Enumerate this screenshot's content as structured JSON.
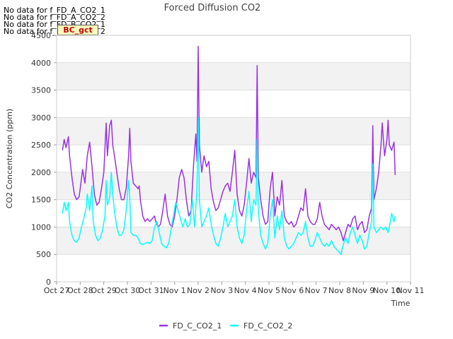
{
  "no_data_messages": [
    "No data for f_FD_A_CO2_1",
    "No data for f_FD_A_CO2_2",
    "No data for f_FD_B_CO2_1",
    "No data for f_FD_B_CO2_2"
  ],
  "badge_text": "BC_gct",
  "chart_data": {
    "type": "line",
    "title": "Forced Diffusion CO2",
    "xlabel": "Time",
    "ylabel": "CO2 Concentration (ppm)",
    "ylim": [
      0,
      4500
    ],
    "xlim": [
      0,
      15
    ],
    "yticks": [
      0,
      500,
      1000,
      1500,
      2000,
      2500,
      3000,
      3500,
      4000,
      4500
    ],
    "xtick_labels": [
      "Oct 27",
      "Oct 28",
      "Oct 29",
      "Oct 30",
      "Oct 31",
      "Nov 1",
      "Nov 2",
      "Nov 3",
      "Nov 4",
      "Nov 5",
      "Nov 6",
      "Nov 7",
      "Nov 8",
      "Nov 9",
      "Nov 10",
      "Nov 11"
    ],
    "x_unit": "days since Oct 27",
    "grid": true,
    "legend_position": "bottom",
    "series": [
      {
        "name": "FD_C_CO2_1",
        "color": "#9b30e6",
        "points": [
          [
            0.25,
            2400
          ],
          [
            0.32,
            2600
          ],
          [
            0.4,
            2450
          ],
          [
            0.5,
            2650
          ],
          [
            0.55,
            2300
          ],
          [
            0.65,
            1900
          ],
          [
            0.75,
            1600
          ],
          [
            0.85,
            1500
          ],
          [
            0.95,
            1550
          ],
          [
            1.0,
            1700
          ],
          [
            1.1,
            2050
          ],
          [
            1.2,
            1800
          ],
          [
            1.3,
            2300
          ],
          [
            1.4,
            2550
          ],
          [
            1.5,
            2100
          ],
          [
            1.6,
            1600
          ],
          [
            1.7,
            1400
          ],
          [
            1.8,
            1450
          ],
          [
            1.9,
            1700
          ],
          [
            2.0,
            2000
          ],
          [
            2.1,
            2900
          ],
          [
            2.15,
            2300
          ],
          [
            2.25,
            2850
          ],
          [
            2.32,
            2950
          ],
          [
            2.38,
            2500
          ],
          [
            2.45,
            2300
          ],
          [
            2.55,
            2000
          ],
          [
            2.65,
            1700
          ],
          [
            2.75,
            1500
          ],
          [
            2.85,
            1500
          ],
          [
            2.95,
            1700
          ],
          [
            3.05,
            2300
          ],
          [
            3.1,
            2800
          ],
          [
            3.15,
            2200
          ],
          [
            3.25,
            1800
          ],
          [
            3.35,
            1750
          ],
          [
            3.45,
            1700
          ],
          [
            3.5,
            1750
          ],
          [
            3.55,
            1500
          ],
          [
            3.65,
            1200
          ],
          [
            3.75,
            1100
          ],
          [
            3.85,
            1150
          ],
          [
            3.95,
            1100
          ],
          [
            4.05,
            1150
          ],
          [
            4.15,
            1200
          ],
          [
            4.2,
            1100
          ],
          [
            4.3,
            1000
          ],
          [
            4.4,
            1050
          ],
          [
            4.5,
            1300
          ],
          [
            4.6,
            1600
          ],
          [
            4.7,
            1200
          ],
          [
            4.8,
            1050
          ],
          [
            4.9,
            1000
          ],
          [
            5.0,
            1200
          ],
          [
            5.1,
            1500
          ],
          [
            5.2,
            1900
          ],
          [
            5.3,
            2050
          ],
          [
            5.4,
            1900
          ],
          [
            5.5,
            1500
          ],
          [
            5.6,
            1200
          ],
          [
            5.7,
            1300
          ],
          [
            5.8,
            2100
          ],
          [
            5.9,
            2700
          ],
          [
            5.95,
            2200
          ],
          [
            6.0,
            4300
          ],
          [
            6.05,
            2500
          ],
          [
            6.15,
            2000
          ],
          [
            6.25,
            2300
          ],
          [
            6.35,
            2100
          ],
          [
            6.45,
            2200
          ],
          [
            6.55,
            1700
          ],
          [
            6.65,
            1450
          ],
          [
            6.75,
            1300
          ],
          [
            6.85,
            1350
          ],
          [
            6.95,
            1500
          ],
          [
            7.05,
            1650
          ],
          [
            7.15,
            1750
          ],
          [
            7.25,
            1800
          ],
          [
            7.35,
            1650
          ],
          [
            7.45,
            2000
          ],
          [
            7.55,
            2400
          ],
          [
            7.65,
            1600
          ],
          [
            7.75,
            1300
          ],
          [
            7.85,
            1200
          ],
          [
            7.95,
            1400
          ],
          [
            8.05,
            1800
          ],
          [
            8.15,
            2250
          ],
          [
            8.25,
            1800
          ],
          [
            8.35,
            2000
          ],
          [
            8.45,
            1900
          ],
          [
            8.5,
            3950
          ],
          [
            8.55,
            1900
          ],
          [
            8.65,
            1500
          ],
          [
            8.75,
            1200
          ],
          [
            8.85,
            1050
          ],
          [
            8.95,
            1100
          ],
          [
            9.05,
            1700
          ],
          [
            9.15,
            2000
          ],
          [
            9.25,
            1200
          ],
          [
            9.35,
            1550
          ],
          [
            9.45,
            1400
          ],
          [
            9.55,
            1850
          ],
          [
            9.65,
            1200
          ],
          [
            9.75,
            1100
          ],
          [
            9.85,
            1050
          ],
          [
            9.95,
            1100
          ],
          [
            10.05,
            1000
          ],
          [
            10.15,
            1050
          ],
          [
            10.25,
            1200
          ],
          [
            10.35,
            1350
          ],
          [
            10.45,
            1300
          ],
          [
            10.55,
            1700
          ],
          [
            10.65,
            1200
          ],
          [
            10.75,
            1100
          ],
          [
            10.85,
            1050
          ],
          [
            10.95,
            1050
          ],
          [
            11.05,
            1150
          ],
          [
            11.15,
            1450
          ],
          [
            11.25,
            1200
          ],
          [
            11.35,
            1050
          ],
          [
            11.45,
            1000
          ],
          [
            11.55,
            950
          ],
          [
            11.65,
            1050
          ],
          [
            11.75,
            1000
          ],
          [
            11.85,
            950
          ],
          [
            11.95,
            1000
          ],
          [
            12.05,
            900
          ],
          [
            12.15,
            750
          ],
          [
            12.25,
            900
          ],
          [
            12.35,
            1050
          ],
          [
            12.45,
            1000
          ],
          [
            12.55,
            1150
          ],
          [
            12.65,
            1200
          ],
          [
            12.75,
            950
          ],
          [
            12.85,
            1050
          ],
          [
            12.95,
            1100
          ],
          [
            13.05,
            900
          ],
          [
            13.15,
            950
          ],
          [
            13.25,
            1200
          ],
          [
            13.35,
            1350
          ],
          [
            13.4,
            2850
          ],
          [
            13.45,
            1500
          ],
          [
            13.55,
            1700
          ],
          [
            13.65,
            2000
          ],
          [
            13.75,
            2500
          ],
          [
            13.8,
            2900
          ],
          [
            13.9,
            2300
          ],
          [
            14.0,
            2600
          ],
          [
            14.05,
            2950
          ],
          [
            14.1,
            2500
          ],
          [
            14.2,
            2400
          ],
          [
            14.3,
            2550
          ],
          [
            14.35,
            1950
          ]
        ]
      },
      {
        "name": "FD_C_CO2_2",
        "color": "#00ffff",
        "points": [
          [
            0.25,
            1250
          ],
          [
            0.32,
            1450
          ],
          [
            0.4,
            1300
          ],
          [
            0.5,
            1450
          ],
          [
            0.55,
            1100
          ],
          [
            0.65,
            850
          ],
          [
            0.75,
            750
          ],
          [
            0.85,
            720
          ],
          [
            0.95,
            800
          ],
          [
            1.05,
            1000
          ],
          [
            1.15,
            1150
          ],
          [
            1.25,
            1350
          ],
          [
            1.3,
            1600
          ],
          [
            1.4,
            1300
          ],
          [
            1.5,
            1750
          ],
          [
            1.55,
            1100
          ],
          [
            1.65,
            850
          ],
          [
            1.75,
            750
          ],
          [
            1.85,
            800
          ],
          [
            1.95,
            950
          ],
          [
            2.05,
            1200
          ],
          [
            2.1,
            1850
          ],
          [
            2.15,
            1400
          ],
          [
            2.25,
            1550
          ],
          [
            2.32,
            2000
          ],
          [
            2.38,
            1600
          ],
          [
            2.45,
            1300
          ],
          [
            2.55,
            1000
          ],
          [
            2.65,
            850
          ],
          [
            2.75,
            850
          ],
          [
            2.85,
            950
          ],
          [
            2.95,
            1300
          ],
          [
            3.05,
            1850
          ],
          [
            3.1,
            1550
          ],
          [
            3.15,
            900
          ],
          [
            3.25,
            850
          ],
          [
            3.35,
            850
          ],
          [
            3.45,
            800
          ],
          [
            3.55,
            700
          ],
          [
            3.65,
            680
          ],
          [
            3.75,
            700
          ],
          [
            3.85,
            720
          ],
          [
            3.95,
            700
          ],
          [
            4.05,
            750
          ],
          [
            4.15,
            1000
          ],
          [
            4.25,
            1100
          ],
          [
            4.35,
            900
          ],
          [
            4.45,
            700
          ],
          [
            4.55,
            650
          ],
          [
            4.65,
            620
          ],
          [
            4.75,
            700
          ],
          [
            4.85,
            950
          ],
          [
            4.95,
            1200
          ],
          [
            5.05,
            1450
          ],
          [
            5.15,
            1300
          ],
          [
            5.25,
            1150
          ],
          [
            5.35,
            1000
          ],
          [
            5.45,
            1150
          ],
          [
            5.55,
            1000
          ],
          [
            5.65,
            1050
          ],
          [
            5.75,
            1500
          ],
          [
            5.85,
            1000
          ],
          [
            5.95,
            1700
          ],
          [
            6.0,
            3000
          ],
          [
            6.05,
            1500
          ],
          [
            6.15,
            1000
          ],
          [
            6.25,
            1100
          ],
          [
            6.35,
            1200
          ],
          [
            6.45,
            1350
          ],
          [
            6.55,
            1050
          ],
          [
            6.65,
            850
          ],
          [
            6.75,
            700
          ],
          [
            6.85,
            650
          ],
          [
            6.95,
            800
          ],
          [
            7.05,
            1000
          ],
          [
            7.15,
            1250
          ],
          [
            7.25,
            1000
          ],
          [
            7.35,
            1100
          ],
          [
            7.45,
            1200
          ],
          [
            7.55,
            1500
          ],
          [
            7.65,
            1000
          ],
          [
            7.75,
            800
          ],
          [
            7.85,
            700
          ],
          [
            7.95,
            850
          ],
          [
            8.05,
            1300
          ],
          [
            8.15,
            1650
          ],
          [
            8.25,
            1100
          ],
          [
            8.35,
            1500
          ],
          [
            8.45,
            1400
          ],
          [
            8.5,
            2600
          ],
          [
            8.55,
            1300
          ],
          [
            8.65,
            850
          ],
          [
            8.75,
            700
          ],
          [
            8.85,
            600
          ],
          [
            8.95,
            700
          ],
          [
            9.05,
            1200
          ],
          [
            9.15,
            1500
          ],
          [
            9.25,
            800
          ],
          [
            9.35,
            1200
          ],
          [
            9.45,
            950
          ],
          [
            9.55,
            1300
          ],
          [
            9.65,
            800
          ],
          [
            9.75,
            650
          ],
          [
            9.85,
            600
          ],
          [
            9.95,
            650
          ],
          [
            10.05,
            700
          ],
          [
            10.15,
            800
          ],
          [
            10.25,
            900
          ],
          [
            10.35,
            850
          ],
          [
            10.45,
            900
          ],
          [
            10.55,
            1100
          ],
          [
            10.65,
            800
          ],
          [
            10.75,
            650
          ],
          [
            10.85,
            650
          ],
          [
            10.95,
            750
          ],
          [
            11.05,
            900
          ],
          [
            11.15,
            800
          ],
          [
            11.25,
            700
          ],
          [
            11.35,
            650
          ],
          [
            11.45,
            700
          ],
          [
            11.55,
            650
          ],
          [
            11.65,
            750
          ],
          [
            11.75,
            650
          ],
          [
            11.85,
            600
          ],
          [
            11.95,
            550
          ],
          [
            12.05,
            500
          ],
          [
            12.15,
            680
          ],
          [
            12.25,
            800
          ],
          [
            12.35,
            700
          ],
          [
            12.45,
            900
          ],
          [
            12.55,
            1000
          ],
          [
            12.65,
            850
          ],
          [
            12.75,
            700
          ],
          [
            12.85,
            850
          ],
          [
            12.95,
            750
          ],
          [
            13.05,
            600
          ],
          [
            13.15,
            650
          ],
          [
            13.25,
            900
          ],
          [
            13.35,
            1100
          ],
          [
            13.4,
            2150
          ],
          [
            13.45,
            1000
          ],
          [
            13.55,
            900
          ],
          [
            13.65,
            950
          ],
          [
            13.75,
            1000
          ],
          [
            13.85,
            950
          ],
          [
            13.95,
            1000
          ],
          [
            14.05,
            900
          ],
          [
            14.15,
            1100
          ],
          [
            14.2,
            1250
          ],
          [
            14.3,
            1100
          ],
          [
            14.35,
            1200
          ]
        ]
      }
    ]
  }
}
